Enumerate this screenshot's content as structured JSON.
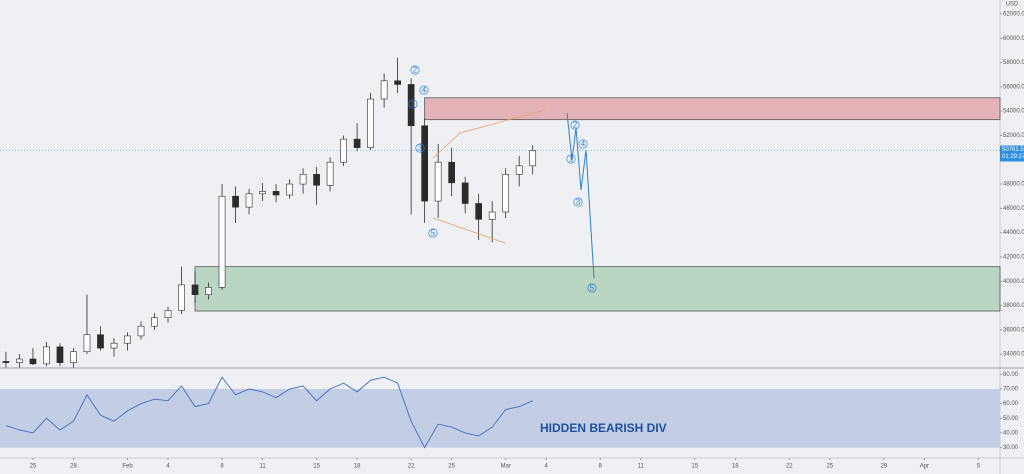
{
  "chart_data": [
    {
      "type": "candlestick",
      "currency": "USD",
      "x": [
        -2,
        -1,
        0,
        1,
        2,
        3,
        4,
        5,
        6,
        7,
        8,
        9,
        10,
        11,
        12,
        13,
        14,
        15,
        16,
        17,
        18,
        19,
        20,
        21,
        22,
        23,
        24,
        25,
        26,
        27,
        28,
        29,
        30,
        31,
        32,
        33,
        34,
        35,
        36,
        37
      ],
      "ohlc": [
        [
          33400,
          34200,
          32900,
          33300
        ],
        [
          33300,
          34000,
          32900,
          33600
        ],
        [
          33600,
          34500,
          33100,
          33200
        ],
        [
          33200,
          35000,
          33000,
          34600
        ],
        [
          34600,
          34900,
          33000,
          33300
        ],
        [
          33300,
          34500,
          32900,
          34200
        ],
        [
          34200,
          38900,
          34000,
          35600
        ],
        [
          35600,
          36300,
          34300,
          34500
        ],
        [
          34500,
          35300,
          33800,
          34900
        ],
        [
          34900,
          35800,
          34300,
          35500
        ],
        [
          35500,
          36700,
          35200,
          36300
        ],
        [
          36300,
          37400,
          36000,
          37000
        ],
        [
          37000,
          37900,
          36600,
          37600
        ],
        [
          37600,
          41200,
          37300,
          39700
        ],
        [
          39700,
          40800,
          38200,
          38900
        ],
        [
          38900,
          39900,
          38500,
          39500
        ],
        [
          39500,
          48000,
          39300,
          47000
        ],
        [
          47000,
          47800,
          44800,
          46100
        ],
        [
          46100,
          47600,
          45500,
          47200
        ],
        [
          47200,
          48100,
          46600,
          47400
        ],
        [
          47400,
          48000,
          46500,
          47100
        ],
        [
          47100,
          48400,
          46800,
          48000
        ],
        [
          48000,
          49300,
          47200,
          48800
        ],
        [
          48800,
          49400,
          46300,
          47900
        ],
        [
          47900,
          50200,
          47400,
          49800
        ],
        [
          49800,
          52000,
          49500,
          51700
        ],
        [
          51700,
          53000,
          50700,
          51000
        ],
        [
          51000,
          55500,
          50800,
          55000
        ],
        [
          55000,
          57100,
          54300,
          56500
        ],
        [
          56500,
          58400,
          55500,
          56200
        ],
        [
          56200,
          56700,
          45500,
          52800
        ],
        [
          52800,
          53400,
          44800,
          46600
        ],
        [
          46600,
          51300,
          45200,
          49800
        ],
        [
          49800,
          51000,
          47000,
          48100
        ],
        [
          48100,
          48600,
          45600,
          46400
        ],
        [
          46400,
          47200,
          43400,
          45100
        ],
        [
          45100,
          46600,
          43200,
          45700
        ],
        [
          45700,
          49300,
          45200,
          48800
        ],
        [
          48800,
          50300,
          47800,
          49500
        ],
        [
          49500,
          51200,
          48800,
          50761.5
        ]
      ],
      "up_color": "#ffffff",
      "down_color": "#2b2b2b",
      "edge_color": "#2b2b2b",
      "last_price": 50761.5,
      "last_price_color": "#2f8fdf",
      "countdown": "01:29:27",
      "zones": [
        {
          "low": 53300,
          "high": 55100,
          "start": 29,
          "color": "#e3b3b8"
        },
        {
          "low": 37550,
          "high": 41200,
          "start": 12,
          "color": "#b9d6c3"
        }
      ],
      "wave_labels": [
        "1",
        "2",
        "3",
        "4",
        "5",
        "1",
        "2",
        "3",
        "4",
        "5"
      ],
      "ylim": [
        32860,
        63150
      ],
      "yticks": [
        {
          "value": 34000,
          "label": "34000.0"
        },
        {
          "value": 36000,
          "label": "36000.0"
        },
        {
          "value": 38000,
          "label": "38000.0"
        },
        {
          "value": 40000,
          "label": "40000.0"
        },
        {
          "value": 42000,
          "label": "42000.0"
        },
        {
          "value": 44000,
          "label": "44000.0"
        },
        {
          "value": 46000,
          "label": "46000.0"
        },
        {
          "value": 48000,
          "label": "48000.0"
        },
        {
          "value": 52000,
          "label": "52000.0"
        },
        {
          "value": 54000,
          "label": "54000.0"
        },
        {
          "value": 56000,
          "label": "56000.0"
        },
        {
          "value": 58000,
          "label": "58000.0"
        },
        {
          "value": 60000,
          "label": "60000.0"
        },
        {
          "value": 62000,
          "label": "62000.0"
        }
      ],
      "xlim": [
        -2.44,
        71.6
      ],
      "xticks": [
        {
          "value": 0,
          "label": "25"
        },
        {
          "value": 3,
          "label": "28"
        },
        {
          "value": 7,
          "label": "Feb"
        },
        {
          "value": 10,
          "label": "4"
        },
        {
          "value": 14,
          "label": "8"
        },
        {
          "value": 17,
          "label": "11"
        },
        {
          "value": 21,
          "label": "15"
        },
        {
          "value": 24,
          "label": "18"
        },
        {
          "value": 28,
          "label": "22"
        },
        {
          "value": 31,
          "label": "25"
        },
        {
          "value": 35,
          "label": "Mar"
        },
        {
          "value": 38,
          "label": "4"
        },
        {
          "value": 42,
          "label": "8"
        },
        {
          "value": 45,
          "label": "11"
        },
        {
          "value": 49,
          "label": "15"
        },
        {
          "value": 52,
          "label": "18"
        },
        {
          "value": 56,
          "label": "22"
        },
        {
          "value": 59,
          "label": "25"
        },
        {
          "value": 63,
          "label": "29"
        },
        {
          "value": 66,
          "label": "Apr"
        },
        {
          "value": 70,
          "label": "5"
        }
      ]
    },
    {
      "type": "line",
      "annotation": "HIDDEN BEARISH DIV",
      "color": "#3a6fc4",
      "band": [
        30,
        70
      ],
      "band_color": "#c3cde3",
      "x": [
        -2,
        -1,
        0,
        1,
        2,
        3,
        4,
        5,
        6,
        7,
        8,
        9,
        10,
        11,
        12,
        13,
        14,
        15,
        16,
        17,
        18,
        19,
        20,
        21,
        22,
        23,
        24,
        25,
        26,
        27,
        28,
        29,
        30,
        31,
        32,
        33,
        34,
        35,
        36,
        37
      ],
      "values": [
        45,
        42,
        40,
        50,
        42,
        48,
        66,
        52,
        48,
        55,
        60,
        63,
        62,
        72,
        58,
        60,
        78,
        66,
        70,
        68,
        64,
        70,
        72,
        62,
        70,
        74,
        68,
        76,
        78,
        74,
        48,
        30,
        46,
        44,
        40,
        38,
        44,
        56,
        58,
        62
      ],
      "ylim": [
        22.9,
        84.3
      ],
      "yticks": [
        {
          "value": 30,
          "label": "30.00"
        },
        {
          "value": 40,
          "label": "40.00"
        },
        {
          "value": 50,
          "label": "50.00"
        },
        {
          "value": 60,
          "label": "60.00"
        },
        {
          "value": 70,
          "label": "70.00"
        },
        {
          "value": 80,
          "label": "80.00"
        }
      ]
    }
  ]
}
